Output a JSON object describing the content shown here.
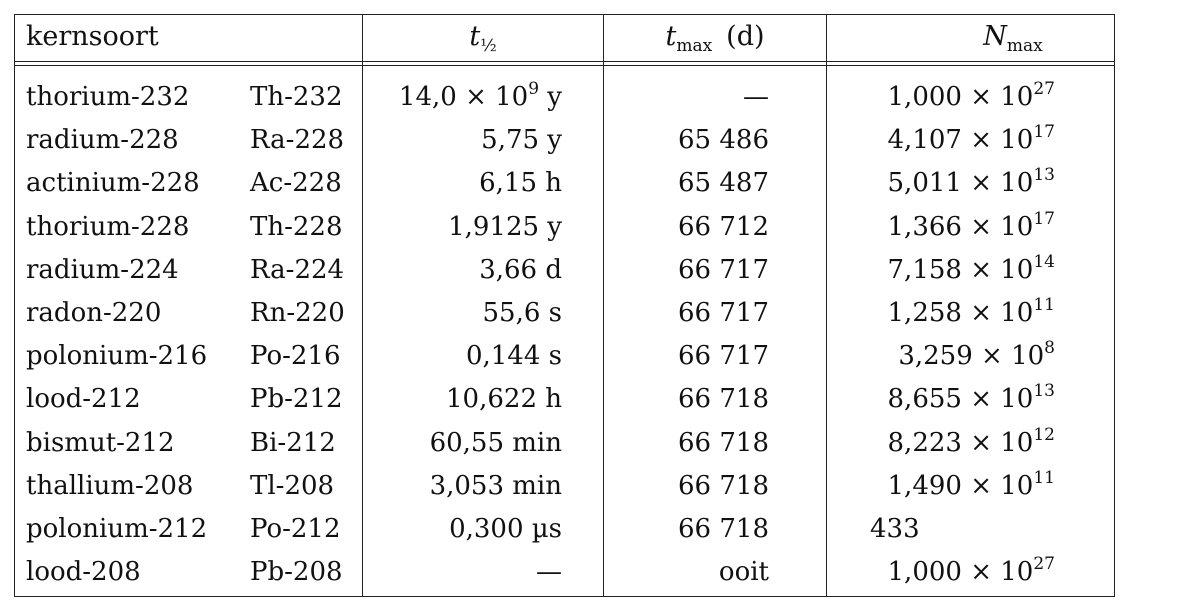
{
  "table": {
    "header": [
      {
        "main": "kernsoort"
      },
      {
        "main": "t",
        "sub": "½"
      },
      {
        "main": "t",
        "sub": "max",
        "suffix": "(d)"
      },
      {
        "main": "N",
        "sub": "max"
      }
    ],
    "rows": [
      [
        "thorium-232",
        "Th-232",
        [
          "14,0 × 10",
          "9",
          " y"
        ],
        "—",
        [
          "1,000 × 10",
          "27"
        ]
      ],
      [
        "radium-228",
        "Ra-228",
        [
          "5,75 y"
        ],
        "65 486",
        [
          "4,107 × 10",
          "17"
        ]
      ],
      [
        "actinium-228",
        "Ac-228",
        [
          "6,15 h"
        ],
        "65 487",
        [
          "5,011 × 10",
          "13"
        ]
      ],
      [
        "thorium-228",
        "Th-228",
        [
          "1,9125 y"
        ],
        "66 712",
        [
          "1,366 × 10",
          "17"
        ]
      ],
      [
        "radium-224",
        "Ra-224",
        [
          "3,66 d"
        ],
        "66 717",
        [
          "7,158 × 10",
          "14"
        ]
      ],
      [
        "radon-220",
        "Rn-220",
        [
          "55,6 s"
        ],
        "66 717",
        [
          "1,258 × 10",
          "11"
        ]
      ],
      [
        "polonium-216",
        "Po-216",
        [
          "0,144 s"
        ],
        "66 717",
        [
          "3,259 × 10",
          "8"
        ]
      ],
      [
        "lood-212",
        "Pb-212",
        [
          "10,622 h"
        ],
        "66 718",
        [
          "8,655 × 10",
          "13"
        ]
      ],
      [
        "bismut-212",
        "Bi-212",
        [
          "60,55 min"
        ],
        "66 718",
        [
          "8,223 × 10",
          "12"
        ]
      ],
      [
        "thallium-208",
        "Tl-208",
        [
          "3,053 min"
        ],
        "66 718",
        [
          "1,490 × 10",
          "11"
        ]
      ],
      [
        "polonium-212",
        "Po-212",
        [
          "0,300 µs"
        ],
        "66 718",
        [
          "433"
        ]
      ],
      [
        "lood-208",
        "Pb-208",
        [
          "—"
        ],
        "ooit",
        [
          "1,000 × 10",
          "27"
        ]
      ]
    ]
  }
}
